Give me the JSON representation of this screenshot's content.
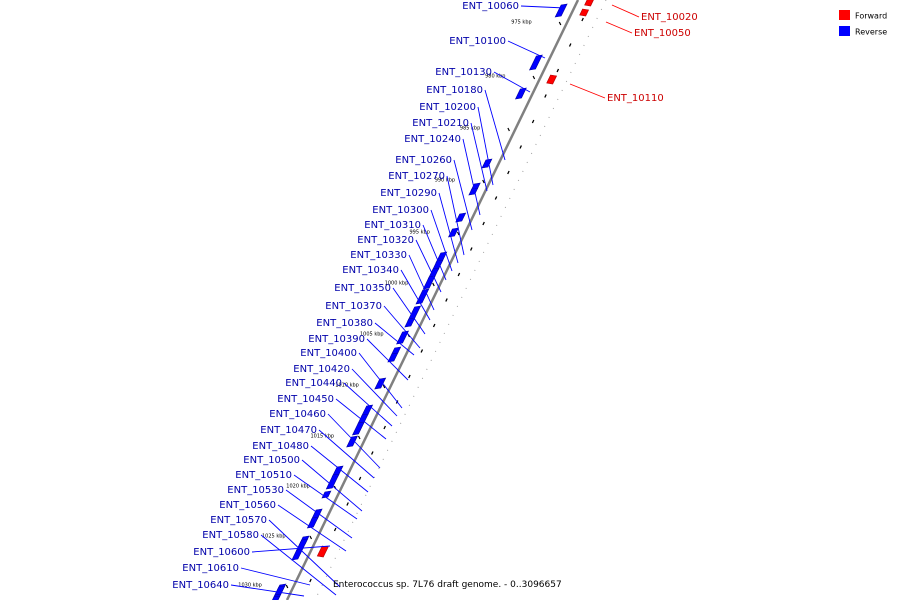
{
  "caption": "Enterococcus sp. 7L76 draft genome. - 0..3096657",
  "legend": [
    {
      "label": "Forward",
      "color": "#ff0000"
    },
    {
      "label": "Reverse",
      "color": "#0000ff"
    }
  ],
  "colors": {
    "forward": "#ff0000",
    "reverse": "#0000ff",
    "backbone": "#808080"
  },
  "kbp_ticks": [
    "975 kbp",
    "980 kbp",
    "985 kbp",
    "990 kbp",
    "995 kbp",
    "1000 kbp",
    "1005 kbp",
    "1010 kbp",
    "1015 kbp",
    "1020 kbp",
    "1025 kbp",
    "1030 kbp"
  ],
  "genes": [
    {
      "label": "ENT_10020",
      "strand": "forward"
    },
    {
      "label": "ENT_10050",
      "strand": "forward"
    },
    {
      "label": "ENT_10060",
      "strand": "reverse"
    },
    {
      "label": "ENT_10100",
      "strand": "reverse"
    },
    {
      "label": "ENT_10110",
      "strand": "forward"
    },
    {
      "label": "ENT_10130",
      "strand": "reverse"
    },
    {
      "label": "ENT_10180",
      "strand": "reverse"
    },
    {
      "label": "ENT_10200",
      "strand": "reverse"
    },
    {
      "label": "ENT_10210",
      "strand": "reverse"
    },
    {
      "label": "ENT_10240",
      "strand": "reverse"
    },
    {
      "label": "ENT_10260",
      "strand": "reverse"
    },
    {
      "label": "ENT_10270",
      "strand": "reverse"
    },
    {
      "label": "ENT_10290",
      "strand": "reverse"
    },
    {
      "label": "ENT_10300",
      "strand": "reverse"
    },
    {
      "label": "ENT_10310",
      "strand": "reverse"
    },
    {
      "label": "ENT_10320",
      "strand": "reverse"
    },
    {
      "label": "ENT_10330",
      "strand": "reverse"
    },
    {
      "label": "ENT_10340",
      "strand": "reverse"
    },
    {
      "label": "ENT_10350",
      "strand": "reverse"
    },
    {
      "label": "ENT_10370",
      "strand": "reverse"
    },
    {
      "label": "ENT_10380",
      "strand": "reverse"
    },
    {
      "label": "ENT_10390",
      "strand": "reverse"
    },
    {
      "label": "ENT_10400",
      "strand": "reverse"
    },
    {
      "label": "ENT_10420",
      "strand": "reverse"
    },
    {
      "label": "ENT_10440",
      "strand": "reverse"
    },
    {
      "label": "ENT_10450",
      "strand": "reverse"
    },
    {
      "label": "ENT_10460",
      "strand": "reverse"
    },
    {
      "label": "ENT_10470",
      "strand": "reverse"
    },
    {
      "label": "ENT_10480",
      "strand": "reverse"
    },
    {
      "label": "ENT_10500",
      "strand": "reverse"
    },
    {
      "label": "ENT_10510",
      "strand": "reverse"
    },
    {
      "label": "ENT_10530",
      "strand": "reverse"
    },
    {
      "label": "ENT_10560",
      "strand": "reverse"
    },
    {
      "label": "ENT_10570",
      "strand": "reverse"
    },
    {
      "label": "ENT_10580",
      "strand": "reverse"
    },
    {
      "label": "ENT_10600",
      "strand": "reverse"
    },
    {
      "label": "ENT_10610",
      "strand": "reverse"
    },
    {
      "label": "ENT_10640",
      "strand": "reverse"
    },
    {
      "label": "",
      "strand": "forward"
    }
  ]
}
